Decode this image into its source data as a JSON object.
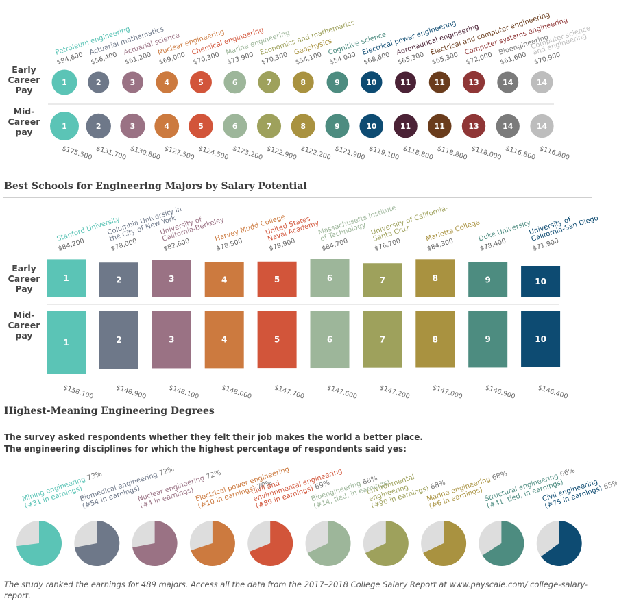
{
  "row_labels": {
    "early": [
      "Early",
      "Career",
      "Pay"
    ],
    "mid": [
      "Mid-",
      "Career",
      "pay"
    ]
  },
  "section_titles": {
    "schools": "Best Schools for Engineering Majors by Salary Potential",
    "meaning": "Highest-Meaning Engineering Degrees"
  },
  "survey_text": [
    "The survey asked respondents whether they felt their job makes the world a better place.",
    "The engineering disciplines for which the highest percentage of respondents said yes:"
  ],
  "footer": "The study ranked the earnings for 489 majors. Access all the data from the 2017–2018 College Salary Report at www.payscale.com/ college-salary-report.",
  "chart_data": [
    {
      "type": "scatter",
      "categories": [
        "Petroleum engineering",
        "Actuarial mathematics",
        "Actuarial science",
        "Nuclear engineering",
        "Chemical engineering",
        "Marine engineering",
        "Economics and mathematics",
        "Geophysics",
        "Cognitive science",
        "Electrical power engineering",
        "Aeronautical engineering",
        "Electrical and computer engineering",
        "Computer systems engineering",
        "Bioengineering",
        "Computer science and engineering"
      ],
      "label_lines": [
        [
          "Petroleum engineering"
        ],
        [
          "Actuarial mathematics"
        ],
        [
          "Actuarial science"
        ],
        [
          "Nuclear engineering"
        ],
        [
          "Chemical engineering"
        ],
        [
          "Marine engineering"
        ],
        [
          "Economics and mathematics"
        ],
        [
          "Geophysics"
        ],
        [
          "Cognitive science"
        ],
        [
          "Electrical power engineering"
        ],
        [
          "Aeronautical engineering"
        ],
        [
          "Electrical and computer engineering"
        ],
        [
          "Computer systems engineering"
        ],
        [
          "Bioengineering"
        ],
        [
          "Computer science",
          "and engineering"
        ]
      ],
      "ranks": [
        "1",
        "2",
        "3",
        "4",
        "5",
        "6",
        "7",
        "8",
        "9",
        "10",
        "11",
        "11",
        "13",
        "14",
        "14"
      ],
      "colors": [
        "#5bc4b6",
        "#6e7889",
        "#9a7284",
        "#cc7a3f",
        "#d2553a",
        "#9db69a",
        "#9ea15c",
        "#a99240",
        "#4d8c80",
        "#0d4b72",
        "#4b2236",
        "#6a3c1c",
        "#8f3636",
        "#7b7b7b",
        "#bdbdbd"
      ],
      "series": [
        {
          "name": "Early Career Pay",
          "values": [
            94600,
            56400,
            61200,
            69000,
            70300,
            73900,
            70300,
            54100,
            54000,
            68600,
            65300,
            65300,
            72000,
            61600,
            70900
          ],
          "labels": [
            "$94,600",
            "$56,400",
            "$61,200",
            "$69,000",
            "$70,300",
            "$73,900",
            "$70,300",
            "$54,100",
            "$54,000",
            "$68,600",
            "$65,300",
            "$65,300",
            "$72,000",
            "$61,600",
            "$70,900"
          ]
        },
        {
          "name": "Mid-Career pay",
          "values": [
            175500,
            131700,
            130800,
            127500,
            124500,
            123200,
            122900,
            122200,
            121900,
            119100,
            118800,
            118800,
            118000,
            116800,
            116800
          ],
          "labels": [
            "$175,500",
            "$131,700",
            "$130,800",
            "$127,500",
            "$124,500",
            "$123,200",
            "$122,900",
            "$122,200",
            "$121,900",
            "$119,100",
            "$118,800",
            "$118,800",
            "$118,000",
            "$116,800",
            "$116,800"
          ]
        }
      ]
    },
    {
      "type": "bar",
      "title": "Best Schools for Engineering Majors by Salary Potential",
      "categories": [
        "Stanford University",
        "Columbia University in the City of New York",
        "University of California-Berkeley",
        "Harvey Mudd College",
        "United States Naval Academy",
        "Massachusetts Institute of Technology",
        "University of California-Santa Cruz",
        "Marietta College",
        "Duke University",
        "University of California-San Diego"
      ],
      "label_lines": [
        [
          "Stanford University"
        ],
        [
          "Columbia University in",
          "the City of New York"
        ],
        [
          "University of",
          "California-Berkeley"
        ],
        [
          "Harvey Mudd College"
        ],
        [
          "United States",
          "Naval Academy"
        ],
        [
          "Massachusetts Institute",
          "of Technology"
        ],
        [
          "University of California-",
          "Santa Cruz"
        ],
        [
          "Marietta College"
        ],
        [
          "Duke University"
        ],
        [
          "University of",
          "California-San Diego"
        ]
      ],
      "ranks": [
        "1",
        "2",
        "3",
        "4",
        "5",
        "6",
        "7",
        "8",
        "9",
        "10"
      ],
      "colors": [
        "#5bc4b6",
        "#6e7889",
        "#9a7284",
        "#cc7a3f",
        "#d2553a",
        "#9db69a",
        "#9ea15c",
        "#a99240",
        "#4d8c80",
        "#0d4b72"
      ],
      "series": [
        {
          "name": "Early Career Pay",
          "values": [
            84200,
            78000,
            82600,
            78500,
            79900,
            84700,
            76700,
            84300,
            78400,
            71900
          ],
          "labels": [
            "$84,200",
            "$78,000",
            "$82,600",
            "$78,500",
            "$79,900",
            "$84,700",
            "$76,700",
            "$84,300",
            "$78,400",
            "$71,900"
          ]
        },
        {
          "name": "Mid-Career pay",
          "values": [
            158100,
            148900,
            148100,
            148000,
            147700,
            147600,
            147200,
            147000,
            146900,
            146400
          ],
          "labels": [
            "$158,100",
            "$148,900",
            "$148,100",
            "$148,000",
            "$147,700",
            "$147,600",
            "$147,200",
            "$147,000",
            "$146,900",
            "$146,400"
          ]
        }
      ]
    },
    {
      "type": "pie",
      "title": "Highest-Meaning Engineering Degrees",
      "categories": [
        "Mining engineering",
        "Biomedical engineering",
        "Nuclear engineering",
        "Electrical power engineering",
        "Civil and environmental engineering",
        "Bioengineering",
        "Environmental engineering",
        "Marine engineering",
        "Structural engineering",
        "Civil engineering"
      ],
      "values": [
        73,
        72,
        72,
        70,
        69,
        68,
        68,
        68,
        66,
        65
      ],
      "colors": [
        "#5bc4b6",
        "#6e7889",
        "#9a7284",
        "#cc7a3f",
        "#d2553a",
        "#9db69a",
        "#9ea15c",
        "#a99240",
        "#4d8c80",
        "#0d4b72"
      ],
      "label_lines": [
        [
          {
            "t": "Mining engineering",
            "p": "73%"
          },
          {
            "t": "(#31 in earnings)"
          }
        ],
        [
          {
            "t": "Biomedical engineering",
            "p": "72%"
          },
          {
            "t": "(#54 in earnings)"
          }
        ],
        [
          {
            "t": "Nuclear engineering",
            "p": "72%"
          },
          {
            "t": "(#4 in earnings)"
          }
        ],
        [
          {
            "t": "Electrical power engineering"
          },
          {
            "t": "(#10 in earnings)",
            "p": "70%"
          }
        ],
        [
          {
            "t": "Civil and"
          },
          {
            "t": "environmental engineering"
          },
          {
            "t": "(#89 in earnings)",
            "p": "69%"
          }
        ],
        [
          {
            "t": "Bioengineering",
            "p": "68%"
          },
          {
            "t": "(#14, tied, in earnings)"
          }
        ],
        [
          {
            "t": "Environmental"
          },
          {
            "t": "engineering"
          },
          {
            "t": "(#90 in earnings)",
            "p": "68%"
          }
        ],
        [
          {
            "t": "Marine engineering",
            "p": "68%"
          },
          {
            "t": "(#6 in earnings)"
          }
        ],
        [
          {
            "t": "Structural engineering",
            "p": "66%"
          },
          {
            "t": "(#41, tied, in earnings)"
          }
        ],
        [
          {
            "t": "Civil engineering"
          },
          {
            "t": "(#75 in earnings)",
            "p": "65%"
          }
        ]
      ],
      "unfilled_color": "#dddddd"
    }
  ]
}
